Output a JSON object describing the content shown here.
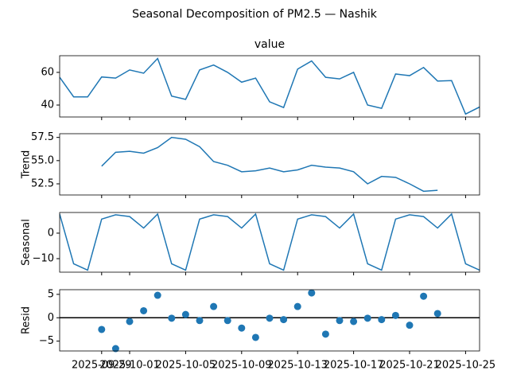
{
  "title": "Seasonal Decomposition of PM2.5 — Nashik",
  "chart_data": [
    {
      "type": "line",
      "title": "value",
      "color": "#1f77b4",
      "x": [
        "2025-09-26",
        "2025-09-27",
        "2025-09-28",
        "2025-09-29",
        "2025-09-30",
        "2025-10-01",
        "2025-10-02",
        "2025-10-03",
        "2025-10-04",
        "2025-10-05",
        "2025-10-06",
        "2025-10-07",
        "2025-10-08",
        "2025-10-09",
        "2025-10-10",
        "2025-10-11",
        "2025-10-12",
        "2025-10-13",
        "2025-10-14",
        "2025-10-15",
        "2025-10-16",
        "2025-10-17",
        "2025-10-18",
        "2025-10-19",
        "2025-10-20",
        "2025-10-21",
        "2025-10-22",
        "2025-10-23",
        "2025-10-24",
        "2025-10-25",
        "2025-10-26"
      ],
      "values": [
        57,
        45,
        45,
        57.2,
        56.5,
        61.5,
        59.5,
        68.5,
        45.5,
        43.5,
        61.5,
        64.5,
        60,
        54,
        56.5,
        42,
        38.5,
        62,
        67,
        57,
        56,
        60,
        40,
        38,
        59,
        58,
        63,
        54.7,
        55,
        34.5,
        38.8
      ],
      "xlim": [
        "2025-09-26",
        "2025-10-26"
      ],
      "ylim": [
        32.7,
        70.2
      ],
      "yticks": [
        40,
        60
      ]
    },
    {
      "type": "line",
      "ylabel": "Trend",
      "color": "#1f77b4",
      "x": [
        "2025-09-29",
        "2025-09-30",
        "2025-10-01",
        "2025-10-02",
        "2025-10-03",
        "2025-10-04",
        "2025-10-05",
        "2025-10-06",
        "2025-10-07",
        "2025-10-08",
        "2025-10-09",
        "2025-10-10",
        "2025-10-11",
        "2025-10-12",
        "2025-10-13",
        "2025-10-14",
        "2025-10-15",
        "2025-10-16",
        "2025-10-17",
        "2025-10-18",
        "2025-10-19",
        "2025-10-20",
        "2025-10-21",
        "2025-10-22",
        "2025-10-23"
      ],
      "values": [
        54.4,
        55.9,
        56.0,
        55.8,
        56.4,
        57.5,
        57.3,
        56.5,
        54.9,
        54.5,
        53.8,
        53.9,
        54.2,
        53.8,
        54.0,
        54.5,
        54.3,
        54.2,
        53.8,
        52.5,
        53.3,
        53.2,
        52.5,
        51.7,
        51.8
      ],
      "xlim": [
        "2025-09-26",
        "2025-10-26"
      ],
      "ylim": [
        51.3,
        57.9
      ],
      "yticks": [
        52.5,
        {
          "value": 55,
          "label": "55.0"
        },
        57.5
      ]
    },
    {
      "type": "line",
      "ylabel": "Seasonal",
      "color": "#1f77b4",
      "x": [
        "2025-09-26",
        "2025-09-27",
        "2025-09-28",
        "2025-09-29",
        "2025-09-30",
        "2025-10-01",
        "2025-10-02",
        "2025-10-03",
        "2025-10-04",
        "2025-10-05",
        "2025-10-06",
        "2025-10-07",
        "2025-10-08",
        "2025-10-09",
        "2025-10-10",
        "2025-10-11",
        "2025-10-12",
        "2025-10-13",
        "2025-10-14",
        "2025-10-15",
        "2025-10-16",
        "2025-10-17",
        "2025-10-18",
        "2025-10-19",
        "2025-10-20",
        "2025-10-21",
        "2025-10-22",
        "2025-10-23",
        "2025-10-24",
        "2025-10-25",
        "2025-10-26"
      ],
      "values": [
        7.5,
        -12,
        -14.5,
        5.5,
        7.2,
        6.5,
        2,
        7.5,
        -12,
        -14.5,
        5.5,
        7.2,
        6.5,
        2,
        7.5,
        -12,
        -14.5,
        5.5,
        7.2,
        6.5,
        2,
        7.5,
        -12,
        -14.5,
        5.5,
        7.2,
        6.5,
        2,
        7.5,
        -12,
        -14.5
      ],
      "xlim": [
        "2025-09-26",
        "2025-10-26"
      ],
      "ylim": [
        -15.3,
        8.1
      ],
      "yticks": [
        {
          "value": -10,
          "label": "−10"
        },
        0
      ]
    },
    {
      "type": "scatter",
      "ylabel": "Resid",
      "color": "#1f77b4",
      "hline": 0,
      "x": [
        "2025-09-29",
        "2025-09-30",
        "2025-10-01",
        "2025-10-02",
        "2025-10-03",
        "2025-10-04",
        "2025-10-05",
        "2025-10-06",
        "2025-10-07",
        "2025-10-08",
        "2025-10-09",
        "2025-10-10",
        "2025-10-11",
        "2025-10-12",
        "2025-10-13",
        "2025-10-14",
        "2025-10-15",
        "2025-10-16",
        "2025-10-17",
        "2025-10-18",
        "2025-10-19",
        "2025-10-20",
        "2025-10-21",
        "2025-10-22",
        "2025-10-23"
      ],
      "values": [
        -2.5,
        -6.6,
        -0.8,
        1.5,
        4.8,
        -0.1,
        0.7,
        -0.6,
        2.4,
        -0.6,
        -2.2,
        -4.2,
        -0.1,
        -0.4,
        2.4,
        5.3,
        -3.5,
        -0.6,
        -0.8,
        -0.1,
        -0.4,
        0.5,
        -1.6,
        4.6,
        0.9
      ],
      "xlim": [
        "2025-09-26",
        "2025-10-26"
      ],
      "ylim": [
        -7.1,
        6.0
      ],
      "yticks": [
        {
          "value": -5,
          "label": "−5"
        },
        0,
        5
      ],
      "xticks": [
        "2025-09-29",
        "2025-10-01",
        "2025-10-05",
        "2025-10-09",
        "2025-10-13",
        "2025-10-17",
        "2025-10-21",
        "2025-10-25"
      ]
    }
  ]
}
